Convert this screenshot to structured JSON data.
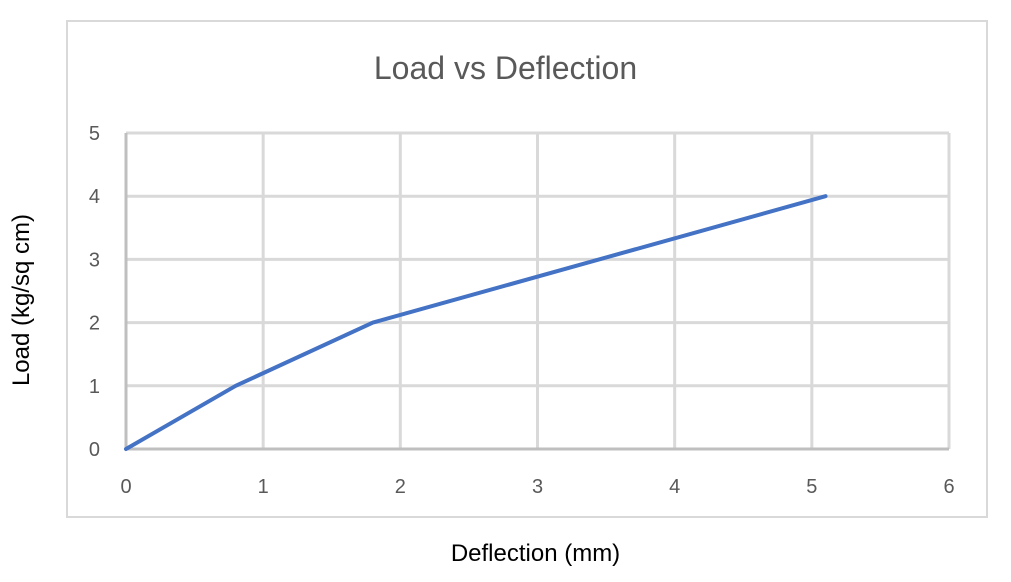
{
  "chart_data": {
    "type": "line",
    "title": "Load vs Deflection",
    "xlabel": "Deflection (mm)",
    "ylabel": "Load (kg/sq cm)",
    "xlim": [
      0,
      6
    ],
    "ylim": [
      0,
      5
    ],
    "x_ticks": [
      "0",
      "1",
      "2",
      "3",
      "4",
      "5",
      "6"
    ],
    "y_ticks": [
      "0",
      "1",
      "2",
      "3",
      "4",
      "5"
    ],
    "grid": true,
    "legend": null,
    "series": [
      {
        "name": "Load",
        "color": "#4472c4",
        "x": [
          0,
          0.8,
          1.8,
          5.1
        ],
        "y": [
          0,
          1,
          2,
          4
        ]
      }
    ]
  },
  "colors": {
    "gridline": "#d9d9d9",
    "axis": "#bfbfbf",
    "title": "#595959",
    "tick_label": "#595959",
    "frame": "#d9d9d9"
  }
}
